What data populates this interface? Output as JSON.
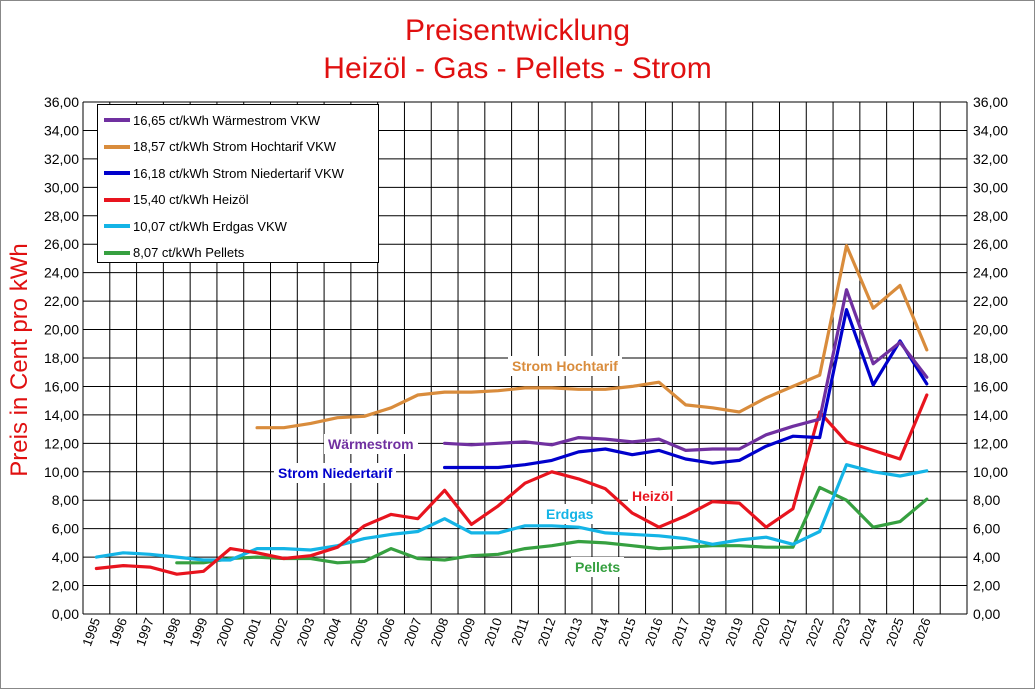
{
  "chart_data": {
    "type": "line",
    "title": "Preisentwicklung",
    "subtitle": "Heizöl - Gas - Pellets - Strom",
    "ylabel": "Preis in Cent pro kWh",
    "xlabel": "",
    "ylim": [
      0,
      36
    ],
    "ytick_step": 2,
    "ytick_labels": [
      "0,00",
      "2,00",
      "4,00",
      "6,00",
      "8,00",
      "10,00",
      "12,00",
      "14,00",
      "16,00",
      "18,00",
      "20,00",
      "22,00",
      "24,00",
      "26,00",
      "28,00",
      "30,00",
      "32,00",
      "34,00",
      "36,00"
    ],
    "x": [
      "1995",
      "1996",
      "1997",
      "1998",
      "1999",
      "2000",
      "2001",
      "2002",
      "2003",
      "2004",
      "2005",
      "2006",
      "2007",
      "2008",
      "2009",
      "2010",
      "2011",
      "2012",
      "2013",
      "2014",
      "2015",
      "2016",
      "2017",
      "2018",
      "2019",
      "2020",
      "2021",
      "2022",
      "2023",
      "2024",
      "2025",
      "2026"
    ],
    "grid": true,
    "legend_position": "top-left",
    "series": [
      {
        "key": "waerme",
        "legend": "16,65 ct/kWh Wärmestrom VKW",
        "label": "Wärmestrom",
        "color": "#7030a0",
        "values": [
          null,
          null,
          null,
          null,
          null,
          null,
          null,
          null,
          null,
          null,
          null,
          null,
          null,
          12.0,
          11.9,
          12.0,
          12.1,
          11.9,
          12.4,
          12.3,
          12.1,
          12.3,
          11.5,
          11.6,
          11.6,
          12.6,
          13.2,
          13.7,
          22.8,
          17.6,
          19.1,
          16.65
        ]
      },
      {
        "key": "hoch",
        "legend": "18,57 ct/kWh Strom Hochtarif VKW",
        "label": "Strom Hochtarif",
        "color": "#d98c3c",
        "values": [
          null,
          null,
          null,
          null,
          null,
          null,
          13.1,
          13.1,
          13.4,
          13.8,
          13.9,
          14.5,
          15.4,
          15.6,
          15.6,
          15.7,
          15.9,
          15.9,
          15.8,
          15.8,
          16.0,
          16.3,
          14.7,
          14.5,
          14.2,
          15.2,
          16.0,
          16.8,
          25.9,
          21.5,
          23.1,
          18.57
        ]
      },
      {
        "key": "nieder",
        "legend": "16,18 ct/kWh Strom Niedertarif VKW",
        "label": "Strom Niedertarif",
        "color": "#0000cc",
        "values": [
          null,
          null,
          null,
          null,
          null,
          null,
          null,
          null,
          null,
          null,
          null,
          null,
          null,
          10.3,
          10.3,
          10.3,
          10.5,
          10.8,
          11.4,
          11.6,
          11.2,
          11.5,
          10.9,
          10.6,
          10.8,
          11.8,
          12.5,
          12.4,
          21.4,
          16.1,
          19.2,
          16.18
        ]
      },
      {
        "key": "heizoel",
        "legend": "15,40 ct/kWh Heizöl",
        "label": "Heizöl",
        "color": "#e8141e",
        "values": [
          3.2,
          3.4,
          3.3,
          2.8,
          3.0,
          4.6,
          4.3,
          3.9,
          4.1,
          4.7,
          6.2,
          7.0,
          6.7,
          8.7,
          6.3,
          7.6,
          9.2,
          10.0,
          9.5,
          8.8,
          7.1,
          6.1,
          6.9,
          7.9,
          7.8,
          6.1,
          7.4,
          14.2,
          12.1,
          11.5,
          10.9,
          15.4
        ]
      },
      {
        "key": "gas",
        "legend": "10,07 ct/kWh Erdgas VKW",
        "label": "Erdgas",
        "color": "#14b4e6",
        "values": [
          4.0,
          4.3,
          4.2,
          4.0,
          3.8,
          3.8,
          4.6,
          4.6,
          4.5,
          4.8,
          5.3,
          5.6,
          5.8,
          6.7,
          5.7,
          5.7,
          6.2,
          6.2,
          6.1,
          5.7,
          5.6,
          5.5,
          5.3,
          4.9,
          5.2,
          5.4,
          4.9,
          5.8,
          10.5,
          10.0,
          9.7,
          10.07
        ]
      },
      {
        "key": "pellets",
        "legend": "8,07 ct/kWh Pellets",
        "label": "Pellets",
        "color": "#36a040",
        "values": [
          null,
          null,
          null,
          3.6,
          3.6,
          3.9,
          4.0,
          3.9,
          3.9,
          3.6,
          3.7,
          4.6,
          3.9,
          3.8,
          4.1,
          4.2,
          4.6,
          4.8,
          5.1,
          5.0,
          4.8,
          4.6,
          4.7,
          4.8,
          4.8,
          4.7,
          4.7,
          8.9,
          8.0,
          6.1,
          6.5,
          8.07
        ]
      }
    ]
  }
}
